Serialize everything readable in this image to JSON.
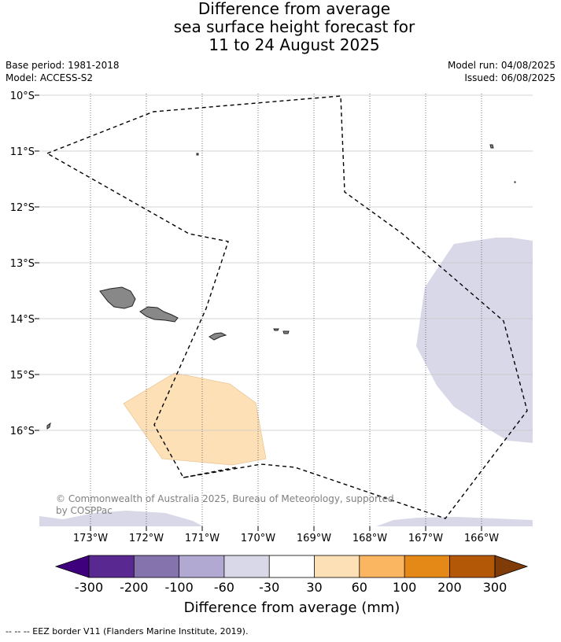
{
  "title": {
    "line1": "Difference from average",
    "line2": "sea surface height forecast for",
    "line3": "11 to 24 August 2025"
  },
  "meta": {
    "base_period": "Base period: 1981-2018",
    "model": "Model: ACCESS-S2",
    "model_run": "Model run: 04/08/2025",
    "issued": "Issued: 06/08/2025"
  },
  "map": {
    "lat_labels": [
      "10°S",
      "11°S",
      "12°S",
      "13°S",
      "14°S",
      "15°S",
      "16°S"
    ],
    "lon_labels": [
      "173°W",
      "172°W",
      "171°W",
      "170°W",
      "169°W",
      "168°W",
      "167°W",
      "166°W"
    ],
    "copyright_line1": "© Commonwealth of Australia 2025, Bureau of Meteorology, supported",
    "copyright_line2": "by COSPPac",
    "colors": {
      "anom_neg30_neg60": "#d8d8e9",
      "anom_30_60": "#fde0b6",
      "land": "#888888"
    }
  },
  "colorbar": {
    "ticks": [
      "-300",
      "-200",
      "-100",
      "-60",
      "-30",
      "30",
      "60",
      "100",
      "200",
      "300"
    ],
    "colors": [
      "#3f007d",
      "#5a2891",
      "#8573ae",
      "#b2a9d3",
      "#d8d8e9",
      "#ffffff",
      "#fde0b6",
      "#fbb661",
      "#e48817",
      "#b35806",
      "#7f3b08"
    ],
    "label": "Difference from average (mm)"
  },
  "footer": "--  --  -- EEZ border V11 (Flanders Marine Institute, 2019)."
}
